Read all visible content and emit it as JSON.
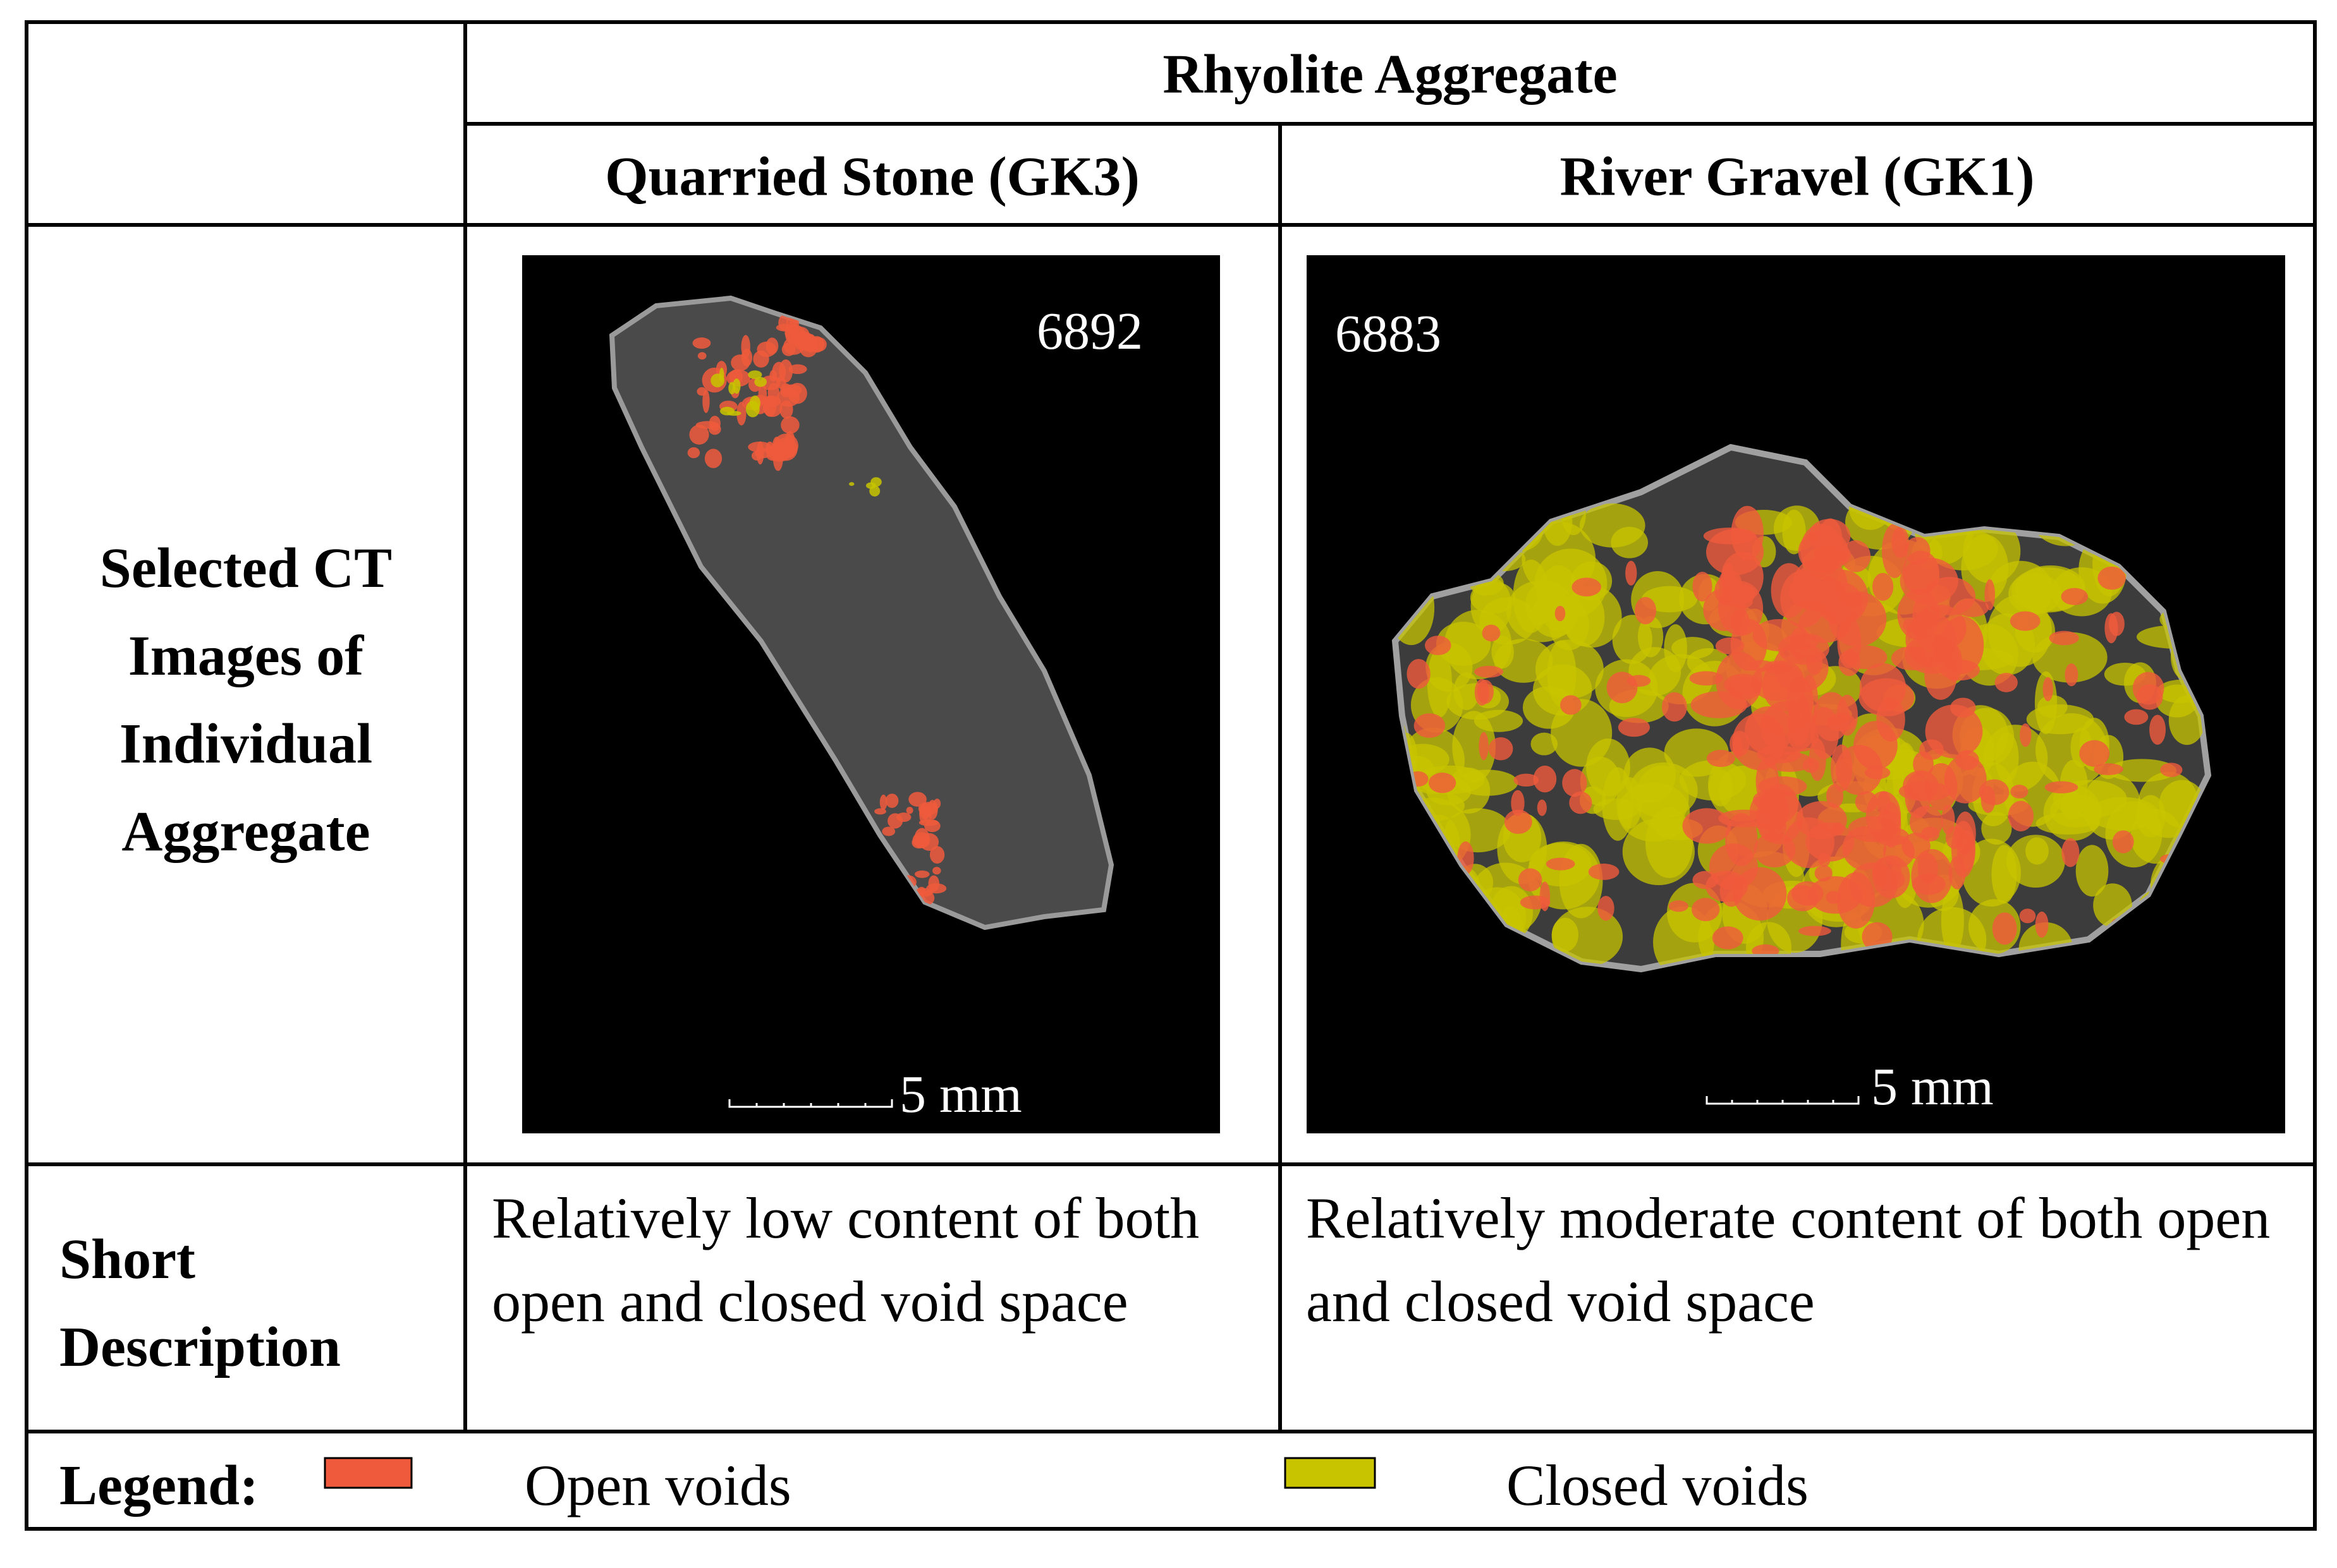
{
  "table": {
    "header": {
      "group": "Rhyolite Aggregate",
      "columns": [
        "Quarried Stone (GK3)",
        "River Gravel (GK1)"
      ]
    },
    "image_row": {
      "label": [
        "Selected CT",
        "Images of",
        "Individual",
        "Aggregate"
      ],
      "images": [
        {
          "id": "6892",
          "scale": "5 mm"
        },
        {
          "id": "6883",
          "scale": "5 mm"
        }
      ]
    },
    "description_row": {
      "label": [
        "Short",
        "Description"
      ],
      "cells": [
        "Relatively low content of both open and closed void space",
        "Relatively moderate content of both open and closed void space"
      ]
    },
    "legend": {
      "label": "Legend:",
      "items": [
        {
          "name": "Open voids",
          "color": "#f05a3c"
        },
        {
          "name": "Closed voids",
          "color": "#c8c400"
        }
      ]
    }
  }
}
